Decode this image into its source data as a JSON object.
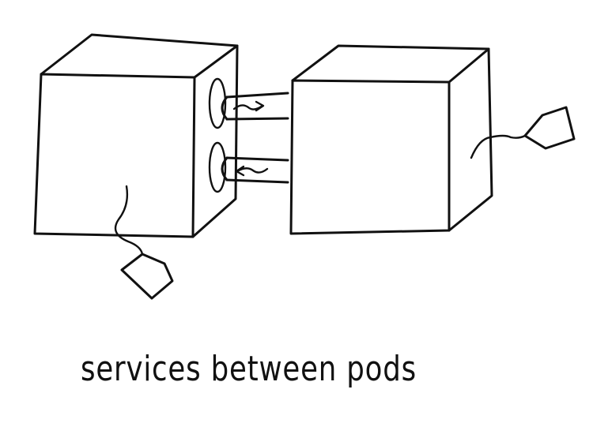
{
  "caption": "services between pods",
  "colors": {
    "ink": "#111111",
    "background": "#ffffff"
  },
  "elements": {
    "left_pod": "cube",
    "right_pod": "cube",
    "connections": [
      "pipe-arrow-right",
      "pipe-arrow-left"
    ],
    "tags": [
      "left-pod-tag",
      "right-pod-tag"
    ]
  }
}
